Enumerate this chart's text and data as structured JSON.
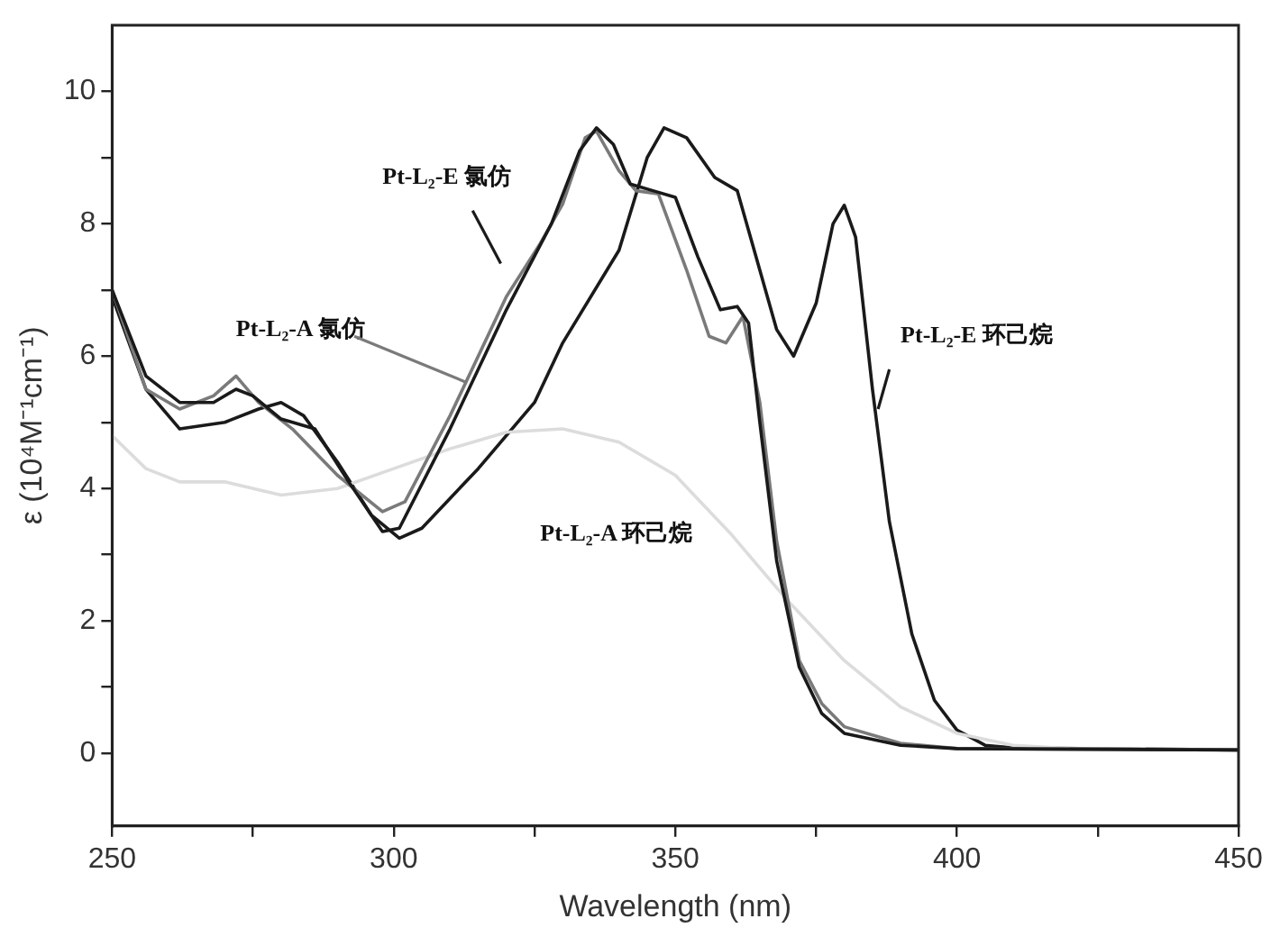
{
  "chart_data": {
    "type": "line",
    "xlabel": "Wavelength (nm)",
    "ylabel": "ε (10⁴M⁻¹cm⁻¹)",
    "xlim": [
      250,
      450
    ],
    "xticks": [
      250,
      {
        "value": 275,
        "label": null
      },
      300,
      {
        "value": 325,
        "label": null
      },
      350,
      {
        "value": 375,
        "label": null
      },
      400,
      {
        "value": 425,
        "label": null
      },
      450
    ],
    "ylim": [
      -1.1,
      11
    ],
    "yticks": [
      0,
      {
        "value": 1,
        "label": null
      },
      2,
      {
        "value": 3,
        "label": null
      },
      4,
      {
        "value": 5,
        "label": null
      },
      6,
      {
        "value": 7,
        "label": null
      },
      8,
      {
        "value": 9,
        "label": null
      },
      10
    ],
    "grid": false,
    "legend": false,
    "marker": "none",
    "line_style": "solid",
    "series": [
      {
        "name": "Pt-L₂-E 氯仿",
        "color": "#1a1a1a",
        "x": [
          250,
          256,
          262,
          268,
          272,
          275,
          280,
          286,
          292,
          298,
          301,
          310,
          320,
          328,
          333,
          336,
          339,
          342,
          346,
          350,
          354,
          358,
          361,
          363,
          365,
          368,
          372,
          376,
          380,
          390,
          400,
          450
        ],
        "values": [
          7.0,
          5.7,
          5.3,
          5.3,
          5.5,
          5.4,
          5.05,
          4.9,
          4.1,
          3.35,
          3.4,
          4.9,
          6.7,
          8.0,
          9.1,
          9.45,
          9.2,
          8.6,
          8.5,
          8.4,
          7.5,
          6.7,
          6.75,
          6.5,
          5.0,
          2.9,
          1.3,
          0.6,
          0.3,
          0.12,
          0.07,
          0.05
        ]
      },
      {
        "name": "Pt-L₂-A 氯仿",
        "color": "#7a7a7a",
        "x": [
          250,
          256,
          262,
          268,
          272,
          276,
          282,
          290,
          298,
          302,
          310,
          320,
          326,
          330,
          334,
          336,
          340,
          343,
          347,
          352,
          356,
          359,
          362,
          365,
          368,
          372,
          376,
          380,
          390,
          400,
          450
        ],
        "values": [
          7.0,
          5.5,
          5.2,
          5.4,
          5.7,
          5.3,
          4.9,
          4.2,
          3.65,
          3.8,
          5.1,
          6.9,
          7.7,
          8.3,
          9.3,
          9.4,
          8.8,
          8.5,
          8.45,
          7.3,
          6.3,
          6.2,
          6.6,
          5.3,
          3.2,
          1.4,
          0.75,
          0.4,
          0.15,
          0.07,
          0.05
        ]
      },
      {
        "name": "Pt-L₂-A 环己烷",
        "color": "#dcdcdc",
        "x": [
          250,
          256,
          262,
          270,
          280,
          290,
          300,
          310,
          320,
          330,
          340,
          350,
          360,
          370,
          380,
          390,
          400,
          410,
          420,
          450
        ],
        "values": [
          4.8,
          4.3,
          4.1,
          4.1,
          3.9,
          4.0,
          4.3,
          4.6,
          4.85,
          4.9,
          4.7,
          4.2,
          3.3,
          2.3,
          1.4,
          0.7,
          0.3,
          0.12,
          0.07,
          0.05
        ]
      },
      {
        "name": "Pt-L₂-E 环己烷",
        "color": "#1a1a1a",
        "x": [
          250,
          256,
          262,
          270,
          276,
          280,
          284,
          290,
          296,
          301,
          305,
          315,
          325,
          330,
          340,
          345,
          348,
          352,
          357,
          361,
          364,
          368,
          371,
          375,
          378,
          380,
          382,
          385,
          388,
          392,
          396,
          400,
          405,
          410,
          450
        ],
        "values": [
          6.9,
          5.5,
          4.9,
          5.0,
          5.2,
          5.3,
          5.1,
          4.4,
          3.6,
          3.25,
          3.4,
          4.3,
          5.3,
          6.2,
          7.6,
          9.0,
          9.45,
          9.3,
          8.7,
          8.5,
          7.6,
          6.4,
          6.0,
          6.8,
          8.0,
          8.28,
          7.8,
          5.5,
          3.5,
          1.8,
          0.8,
          0.35,
          0.12,
          0.08,
          0.05
        ]
      }
    ]
  }
}
